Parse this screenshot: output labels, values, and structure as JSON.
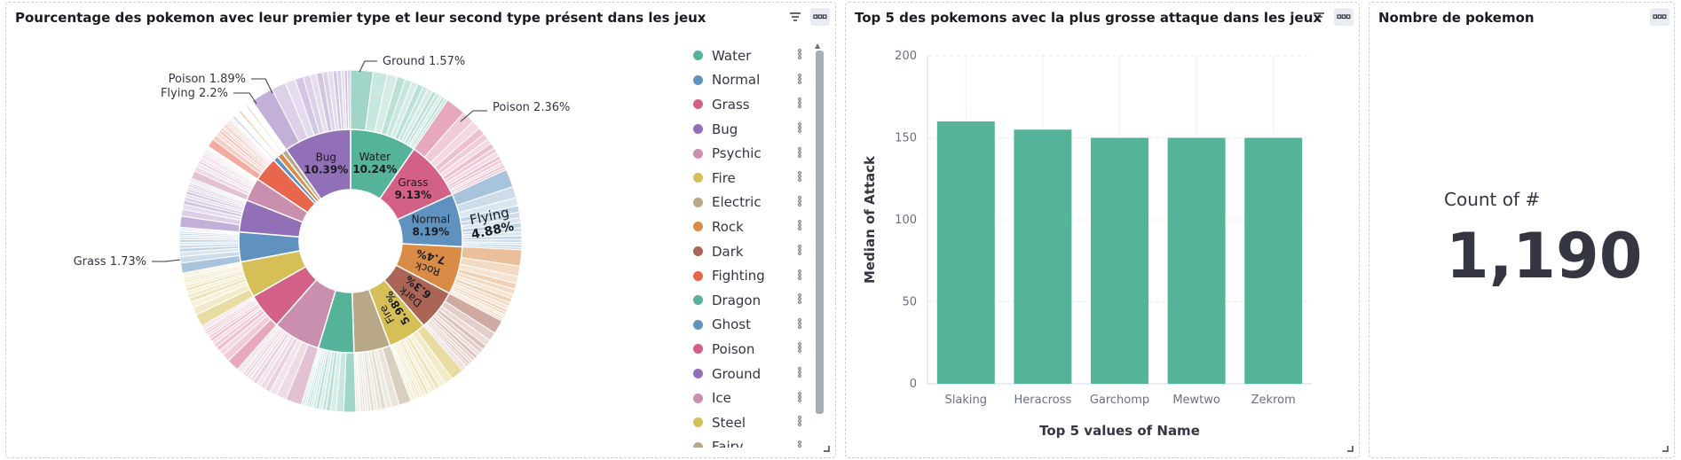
{
  "panels": {
    "donut": {
      "title": "Pourcentage des pokemon avec leur premier type et leur second type présent dans les jeux"
    },
    "bar": {
      "title": "Top 5 des pokemons avec la plus grosse attaque dans les jeux"
    },
    "metric": {
      "title": "Nombre de pokemon",
      "label": "Count of #",
      "value": "1,190"
    }
  },
  "icons": {
    "filter": "filter-icon",
    "menu": "options-menu-icon",
    "resize": "resize-handle-icon",
    "legend_options": "legend-item-options-icon"
  },
  "legend": [
    {
      "label": "Water",
      "color": "#54b399"
    },
    {
      "label": "Normal",
      "color": "#6092c0"
    },
    {
      "label": "Grass",
      "color": "#d36086"
    },
    {
      "label": "Bug",
      "color": "#9170b8"
    },
    {
      "label": "Psychic",
      "color": "#ca8eae"
    },
    {
      "label": "Fire",
      "color": "#d6bf57"
    },
    {
      "label": "Electric",
      "color": "#b9a888"
    },
    {
      "label": "Rock",
      "color": "#da8b45"
    },
    {
      "label": "Dark",
      "color": "#aa6556"
    },
    {
      "label": "Fighting",
      "color": "#e7664c"
    },
    {
      "label": "Dragon",
      "color": "#54b399"
    },
    {
      "label": "Ghost",
      "color": "#6092c0"
    },
    {
      "label": "Poison",
      "color": "#d36086"
    },
    {
      "label": "Ground",
      "color": "#9170b8"
    },
    {
      "label": "Ice",
      "color": "#ca8eae"
    },
    {
      "label": "Steel",
      "color": "#d6bf57"
    },
    {
      "label": "Fairy",
      "color": "#b9a888"
    }
  ],
  "chart_data": [
    {
      "type": "pie",
      "title": "Pourcentage des pokemon avec leur premier type et leur second type présent dans les jeux",
      "inner_ring": [
        {
          "label": "Water",
          "value": 10.24,
          "color": "#54b399",
          "text": "Water",
          "pct": "10.24%"
        },
        {
          "label": "Grass",
          "value": 9.13,
          "color": "#d36086",
          "text": "Grass",
          "pct": "9.13%"
        },
        {
          "label": "Normal",
          "value": 8.19,
          "color": "#6092c0",
          "text": "Normal",
          "pct": "8.19%"
        },
        {
          "label": "Rock",
          "value": 7.4,
          "color": "#da8b45",
          "text": "Rock",
          "pct": "7.4%"
        },
        {
          "label": "Dark",
          "value": 6.3,
          "color": "#aa6556",
          "text": "Dark",
          "pct": "6.3%"
        },
        {
          "label": "Fire",
          "value": 5.98,
          "color": "#d6bf57",
          "text": "Fire",
          "pct": "5.98%"
        },
        {
          "label": "Electric",
          "value": 5.6,
          "color": "#b9a888"
        },
        {
          "label": "Dragon",
          "value": 5.5,
          "color": "#54b399"
        },
        {
          "label": "Psychic",
          "value": 7.3,
          "color": "#ca8eae"
        },
        {
          "label": "Poison",
          "value": 5.6,
          "color": "#d36086"
        },
        {
          "label": "Steel",
          "value": 5.6,
          "color": "#d6bf57"
        },
        {
          "label": "Ghost",
          "value": 4.6,
          "color": "#6092c0"
        },
        {
          "label": "Ground",
          "value": 5.0,
          "color": "#9170b8"
        },
        {
          "label": "Ice",
          "value": 3.6,
          "color": "#ca8eae"
        },
        {
          "label": "Fighting",
          "value": 3.8,
          "color": "#e7664c"
        },
        {
          "label": "Ghost2",
          "value": 0.8,
          "color": "#6092c0"
        },
        {
          "label": "Rock2",
          "value": 0.9,
          "color": "#da8b45"
        },
        {
          "label": "Fairy",
          "value": 0.8,
          "color": "#b9a888"
        },
        {
          "label": "Bug",
          "value": 10.39,
          "color": "#9170b8",
          "text": "Bug",
          "pct": "10.39%"
        }
      ],
      "outer_labels": [
        {
          "label": "Ground",
          "value": "1.57%"
        },
        {
          "label": "Poison",
          "value": "2.36%"
        },
        {
          "label": "Poison",
          "value": "1.89%"
        },
        {
          "label": "Flying",
          "value": "2.2%"
        },
        {
          "label": "Grass",
          "value": "1.73%"
        }
      ],
      "outer_inside_labels": [
        {
          "label": "Flying",
          "value": "4.88%"
        }
      ]
    },
    {
      "type": "bar",
      "title": "Top 5 des pokemons avec la plus grosse attaque dans les jeux",
      "categories": [
        "Slaking",
        "Heracross",
        "Garchomp",
        "Mewtwo",
        "Zekrom"
      ],
      "values": [
        160,
        155,
        150,
        150,
        150
      ],
      "xlabel": "Top 5 values of Name",
      "ylabel": "Median of Attack",
      "ylim": [
        0,
        200
      ],
      "yticks": [
        0,
        50,
        100,
        150,
        200
      ],
      "color": "#54b399",
      "grid": true
    }
  ]
}
